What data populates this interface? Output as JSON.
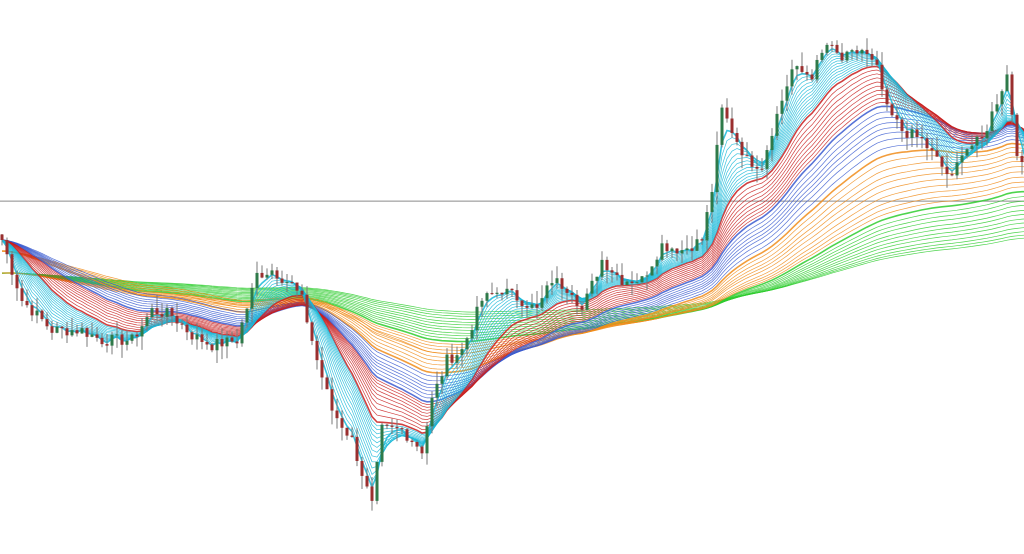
{
  "chart_data": {
    "type": "candlestick",
    "title": "",
    "xlabel": "",
    "ylabel": "",
    "ylim": [
      0,
      100
    ],
    "grid": false,
    "legend": "none",
    "horizontal_line": 63.7,
    "close_keypoints": [
      [
        0,
        56.7
      ],
      [
        4,
        45.8
      ],
      [
        10,
        40.4
      ],
      [
        16,
        40.4
      ],
      [
        20,
        38.6
      ],
      [
        26,
        38.6
      ],
      [
        30,
        44.0
      ],
      [
        34,
        43.1
      ],
      [
        38,
        39.5
      ],
      [
        42,
        37.7
      ],
      [
        47,
        38.6
      ],
      [
        51,
        50.4
      ],
      [
        54,
        51.3
      ],
      [
        58,
        48.6
      ],
      [
        60,
        45.8
      ],
      [
        63,
        35.0
      ],
      [
        66,
        26.0
      ],
      [
        70,
        20.6
      ],
      [
        73,
        11.6
      ],
      [
        74,
        8.8
      ],
      [
        76,
        22.4
      ],
      [
        80,
        22.4
      ],
      [
        84,
        18.8
      ],
      [
        86,
        27.8
      ],
      [
        89,
        35.0
      ],
      [
        92,
        36.8
      ],
      [
        96,
        45.8
      ],
      [
        100,
        47.7
      ],
      [
        104,
        45.8
      ],
      [
        107,
        44.0
      ],
      [
        110,
        49.5
      ],
      [
        114,
        47.7
      ],
      [
        116,
        44.0
      ],
      [
        120,
        53.1
      ],
      [
        124,
        49.5
      ],
      [
        128,
        49.5
      ],
      [
        132,
        55.8
      ],
      [
        136,
        54.9
      ],
      [
        140,
        56.7
      ],
      [
        142,
        65.7
      ],
      [
        144,
        80.1
      ],
      [
        146,
        76.5
      ],
      [
        149,
        71.1
      ],
      [
        152,
        70.2
      ],
      [
        154,
        76.5
      ],
      [
        158,
        87.4
      ],
      [
        162,
        86.5
      ],
      [
        165,
        91.9
      ],
      [
        168,
        89.2
      ],
      [
        172,
        91.0
      ],
      [
        175,
        87.4
      ],
      [
        177,
        80.1
      ],
      [
        180,
        76.5
      ],
      [
        184,
        74.7
      ],
      [
        187,
        71.1
      ],
      [
        190,
        67.5
      ],
      [
        192,
        72.9
      ],
      [
        196,
        74.7
      ],
      [
        199,
        81.9
      ],
      [
        201,
        86.5
      ],
      [
        203,
        72.9
      ],
      [
        205,
        66.6
      ]
    ],
    "moving_average_groups": [
      {
        "color": "#19b8d8",
        "periods": [
          3,
          4,
          5,
          6,
          7,
          8,
          9,
          10,
          11,
          12,
          13,
          14,
          15
        ]
      },
      {
        "color": "#c81e1e",
        "periods": [
          16,
          18,
          20,
          22,
          24,
          26,
          28,
          30,
          32,
          34
        ]
      },
      {
        "color": "#3a5bd0",
        "periods": [
          36,
          39,
          42,
          45,
          48,
          51,
          55,
          60
        ]
      },
      {
        "color": "#f08c1a",
        "periods": [
          65,
          70,
          76,
          82,
          88,
          95,
          102,
          110,
          118,
          126
        ]
      },
      {
        "color": "#2ecc2e",
        "periods": [
          135,
          145,
          155,
          165,
          178,
          190,
          205,
          220,
          240,
          260,
          280,
          300
        ]
      }
    ],
    "candle_colors": {
      "up": "#2f7a4a",
      "down": "#9a2f2f",
      "wick": "#7a7a7a"
    },
    "line_color": "#8a8a8a"
  }
}
